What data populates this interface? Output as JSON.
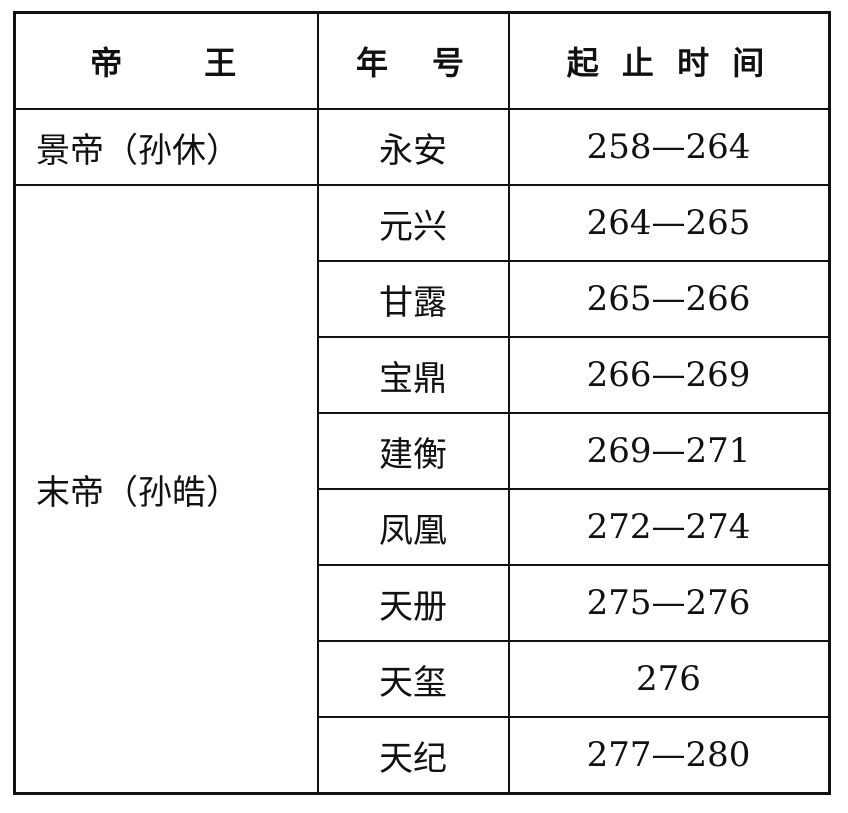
{
  "headers": [
    "帝　　王",
    "年　号",
    "起 止 时 间"
  ],
  "emperors": [
    "景帝（孙休）",
    "末帝（孙皓）"
  ],
  "rows": [
    {
      "era": "永安",
      "years": "258—264"
    },
    {
      "era": "元兴",
      "years": "264—265"
    },
    {
      "era": "甘露",
      "years": "265—266"
    },
    {
      "era": "宝鼎",
      "years": "266—269"
    },
    {
      "era": "建衡",
      "years": "269—271"
    },
    {
      "era": "凤凰",
      "years": "272—274"
    },
    {
      "era": "天册",
      "years": "275—276"
    },
    {
      "era": "天玺",
      "years": "276"
    },
    {
      "era": "天纪",
      "years": "277—280"
    }
  ]
}
